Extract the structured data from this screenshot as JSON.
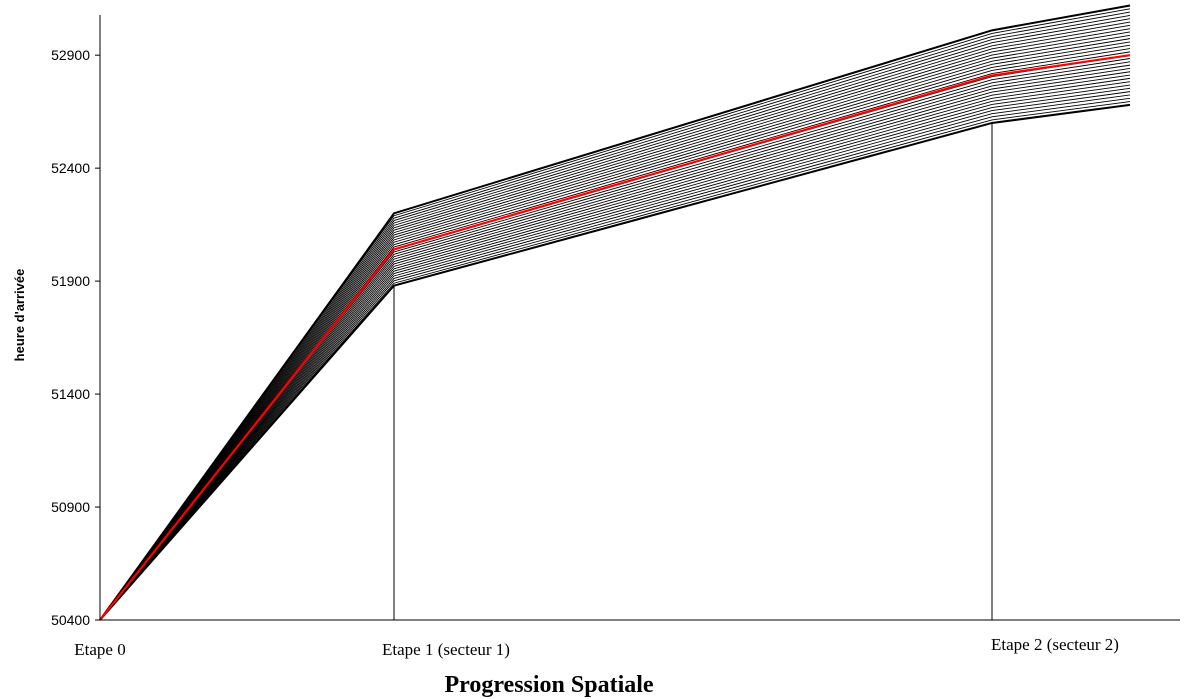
{
  "chart_data": {
    "type": "line",
    "title": "",
    "xlabel": "Progression Spatiale",
    "ylabel": "heure d'arrivée",
    "ylim": [
      50400,
      53100
    ],
    "yticks": [
      50400,
      50900,
      51400,
      51900,
      52400,
      52900
    ],
    "x": [
      0,
      1,
      2,
      2.5
    ],
    "category_labels": [
      {
        "x": 0,
        "label": "Etape 0"
      },
      {
        "x": 1,
        "label": "Etape 1 (secteur 1)"
      },
      {
        "x": 2,
        "label": "Etape 2 (secteur 2)"
      }
    ],
    "marker_lines_x": [
      1,
      2
    ],
    "band": {
      "count": 31,
      "line_color": "#000000",
      "lower": [
        50400,
        51880,
        52600,
        52680
      ],
      "upper": [
        50400,
        52200,
        53010,
        53120
      ]
    },
    "highlight_series": {
      "values": [
        50400,
        52040,
        52810,
        52900
      ],
      "color": "#ff0000"
    },
    "grid": false
  }
}
